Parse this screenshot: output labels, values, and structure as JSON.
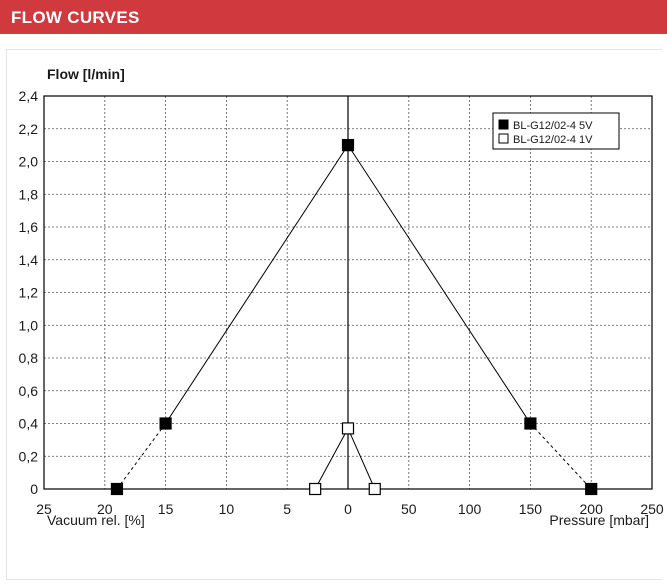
{
  "header": {
    "title": "FLOW CURVES"
  },
  "chart_data": {
    "type": "line",
    "ylabel": "Flow [l/min]",
    "xlabel_left": "Vacuum rel. [%]",
    "xlabel_right": "Pressure [mbar]",
    "ylim": [
      0,
      2.4
    ],
    "y_ticks": [
      "0",
      "0,2",
      "0,4",
      "0,6",
      "0,8",
      "1,0",
      "1,2",
      "1,4",
      "1,6",
      "1,8",
      "2,0",
      "2,2",
      "2,4"
    ],
    "x_ticks": [
      "25",
      "20",
      "15",
      "10",
      "5",
      "0",
      "50",
      "100",
      "150",
      "200",
      "250"
    ],
    "x_axis_note": "Left half: vacuum rel. [%] 25→0; right half: pressure [mbar] 0→250",
    "legend_position": "top-right",
    "grid": true,
    "series": [
      {
        "name": "BL-G12/02-4 5V",
        "marker": "filled-square",
        "points": [
          {
            "side": "vacuum",
            "x": 19,
            "y": 0
          },
          {
            "side": "vacuum",
            "x": 15,
            "y": 0.4
          },
          {
            "side": "center",
            "x": 0,
            "y": 2.1
          },
          {
            "side": "pressure",
            "x": 150,
            "y": 0.4
          },
          {
            "side": "pressure",
            "x": 200,
            "y": 0
          }
        ]
      },
      {
        "name": "BL-G12/02-4 1V",
        "marker": "open-square",
        "points": [
          {
            "side": "vacuum",
            "x": 2.7,
            "y": 0
          },
          {
            "side": "center",
            "x": 0,
            "y": 0.37
          },
          {
            "side": "pressure",
            "x": 22,
            "y": 0
          }
        ]
      }
    ]
  }
}
